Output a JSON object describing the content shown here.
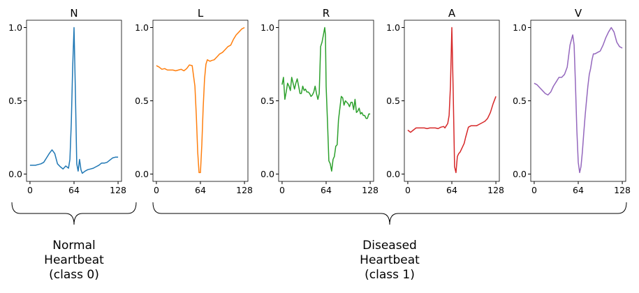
{
  "chart_data": [
    {
      "type": "line",
      "title": "N",
      "color": "#1f77b4",
      "xticks": [
        "0",
        "64",
        "128"
      ],
      "yticks": [
        "0.0",
        "0.5",
        "1.0"
      ],
      "xlim": [
        -5,
        133
      ],
      "ylim": [
        -0.05,
        1.05
      ],
      "x": [
        0,
        4,
        8,
        12,
        16,
        20,
        24,
        28,
        32,
        36,
        40,
        44,
        48,
        52,
        56,
        58,
        60,
        62,
        64,
        66,
        68,
        70,
        72,
        74,
        76,
        80,
        84,
        88,
        92,
        96,
        100,
        104,
        108,
        112,
        116,
        120,
        124,
        128
      ],
      "y": [
        0.06,
        0.06,
        0.06,
        0.065,
        0.07,
        0.08,
        0.11,
        0.14,
        0.165,
        0.14,
        0.07,
        0.05,
        0.035,
        0.055,
        0.04,
        0.1,
        0.35,
        0.72,
        1.0,
        0.55,
        0.07,
        0.02,
        0.1,
        0.03,
        0.005,
        0.02,
        0.03,
        0.035,
        0.04,
        0.05,
        0.06,
        0.075,
        0.075,
        0.08,
        0.095,
        0.11,
        0.115,
        0.115
      ]
    },
    {
      "type": "line",
      "title": "L",
      "color": "#ff7f0e",
      "xticks": [
        "0",
        "64",
        "128"
      ],
      "yticks": [
        "0.0",
        "0.5",
        "1.0"
      ],
      "xlim": [
        -5,
        133
      ],
      "ylim": [
        -0.05,
        1.05
      ],
      "x": [
        0,
        4,
        8,
        12,
        16,
        20,
        24,
        28,
        32,
        36,
        40,
        44,
        48,
        52,
        56,
        58,
        60,
        62,
        64,
        66,
        68,
        70,
        72,
        74,
        76,
        78,
        80,
        84,
        88,
        92,
        96,
        100,
        104,
        108,
        112,
        116,
        120,
        124,
        128
      ],
      "y": [
        0.74,
        0.73,
        0.715,
        0.72,
        0.71,
        0.71,
        0.71,
        0.705,
        0.71,
        0.715,
        0.705,
        0.72,
        0.745,
        0.74,
        0.6,
        0.4,
        0.15,
        0.01,
        0.01,
        0.2,
        0.45,
        0.65,
        0.75,
        0.78,
        0.775,
        0.77,
        0.775,
        0.78,
        0.8,
        0.82,
        0.83,
        0.85,
        0.87,
        0.88,
        0.92,
        0.95,
        0.97,
        0.99,
        1.0
      ]
    },
    {
      "type": "line",
      "title": "R",
      "color": "#2ca02c",
      "xticks": [
        "0",
        "64",
        "128"
      ],
      "yticks": [
        "0.0",
        "0.5",
        "1.0"
      ],
      "xlim": [
        -5,
        133
      ],
      "ylim": [
        -0.05,
        1.05
      ],
      "x": [
        0,
        2,
        4,
        6,
        8,
        10,
        12,
        14,
        16,
        18,
        20,
        22,
        24,
        26,
        28,
        30,
        32,
        34,
        36,
        38,
        40,
        42,
        44,
        46,
        48,
        50,
        52,
        54,
        56,
        58,
        60,
        62,
        63,
        64,
        66,
        68,
        70,
        72,
        74,
        76,
        78,
        80,
        82,
        84,
        86,
        88,
        90,
        92,
        94,
        96,
        98,
        100,
        102,
        104,
        106,
        108,
        110,
        112,
        114,
        116,
        118,
        120,
        122,
        124,
        126,
        128
      ],
      "y": [
        0.61,
        0.66,
        0.51,
        0.56,
        0.62,
        0.6,
        0.57,
        0.66,
        0.62,
        0.58,
        0.62,
        0.65,
        0.6,
        0.55,
        0.55,
        0.6,
        0.57,
        0.58,
        0.56,
        0.56,
        0.55,
        0.53,
        0.54,
        0.56,
        0.6,
        0.55,
        0.51,
        0.55,
        0.87,
        0.9,
        0.95,
        1.0,
        0.95,
        0.6,
        0.35,
        0.09,
        0.07,
        0.02,
        0.1,
        0.12,
        0.19,
        0.2,
        0.37,
        0.45,
        0.53,
        0.52,
        0.47,
        0.5,
        0.49,
        0.48,
        0.46,
        0.49,
        0.49,
        0.44,
        0.51,
        0.42,
        0.43,
        0.45,
        0.41,
        0.42,
        0.4,
        0.4,
        0.38,
        0.38,
        0.41,
        0.41
      ]
    },
    {
      "type": "line",
      "title": "A",
      "color": "#d62728",
      "xticks": [
        "0",
        "64",
        "128"
      ],
      "yticks": [
        "0.0",
        "0.5",
        "1.0"
      ],
      "xlim": [
        -5,
        133
      ],
      "ylim": [
        -0.05,
        1.05
      ],
      "x": [
        0,
        4,
        8,
        12,
        16,
        20,
        24,
        28,
        32,
        36,
        40,
        44,
        48,
        52,
        54,
        56,
        58,
        60,
        62,
        64,
        66,
        68,
        70,
        72,
        74,
        76,
        78,
        80,
        82,
        84,
        88,
        92,
        96,
        100,
        104,
        108,
        112,
        116,
        120,
        124,
        128
      ],
      "y": [
        0.3,
        0.285,
        0.3,
        0.315,
        0.315,
        0.315,
        0.315,
        0.31,
        0.315,
        0.315,
        0.315,
        0.31,
        0.32,
        0.325,
        0.315,
        0.33,
        0.345,
        0.4,
        0.6,
        1.0,
        0.55,
        0.05,
        0.01,
        0.12,
        0.14,
        0.15,
        0.17,
        0.19,
        0.21,
        0.25,
        0.32,
        0.33,
        0.33,
        0.33,
        0.34,
        0.35,
        0.36,
        0.38,
        0.42,
        0.48,
        0.53
      ]
    },
    {
      "type": "line",
      "title": "V",
      "color": "#9467bd",
      "xticks": [
        "0",
        "64",
        "128"
      ],
      "yticks": [
        "0.0",
        "0.5",
        "1.0"
      ],
      "xlim": [
        -5,
        133
      ],
      "ylim": [
        -0.05,
        1.05
      ],
      "x": [
        0,
        4,
        8,
        12,
        16,
        20,
        24,
        28,
        32,
        36,
        40,
        44,
        48,
        52,
        56,
        58,
        60,
        62,
        64,
        66,
        68,
        70,
        72,
        74,
        76,
        78,
        80,
        82,
        84,
        86,
        88,
        92,
        96,
        100,
        104,
        108,
        112,
        116,
        120,
        124,
        128
      ],
      "y": [
        0.62,
        0.61,
        0.59,
        0.57,
        0.55,
        0.54,
        0.56,
        0.6,
        0.63,
        0.66,
        0.66,
        0.68,
        0.73,
        0.88,
        0.95,
        0.88,
        0.6,
        0.3,
        0.08,
        0.01,
        0.05,
        0.15,
        0.28,
        0.4,
        0.5,
        0.6,
        0.68,
        0.72,
        0.78,
        0.82,
        0.82,
        0.83,
        0.84,
        0.88,
        0.93,
        0.97,
        1.0,
        0.97,
        0.9,
        0.87,
        0.86
      ]
    }
  ],
  "groups": [
    {
      "line1": "Normal",
      "line2": "Heartbeat",
      "line3": "(class 0)"
    },
    {
      "line1": "Diseased",
      "line2": "Heartbeat",
      "line3": "(class 1)"
    }
  ]
}
